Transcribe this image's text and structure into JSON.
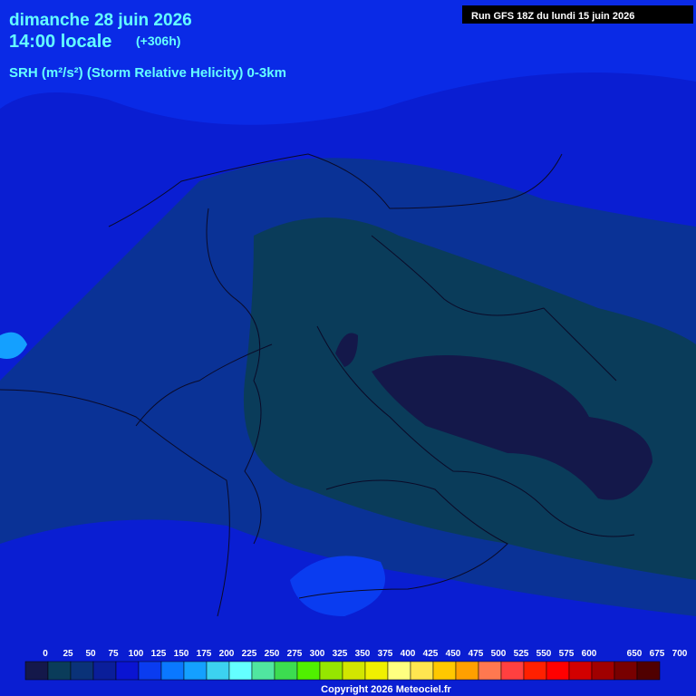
{
  "header": {
    "date": "dimanche 28 juin 2026",
    "time": "14:00 locale",
    "lead": "(+306h)",
    "parameter": "SRH (m²/s²) (Storm Relative Helicity) 0-3km",
    "run": "Run GFS 18Z du lundi 15 juin 2026"
  },
  "legend": {
    "ticks": [
      0,
      25,
      50,
      75,
      100,
      125,
      150,
      175,
      200,
      225,
      250,
      275,
      300,
      325,
      350,
      375,
      400,
      425,
      450,
      475,
      500,
      525,
      550,
      575,
      600,
      650,
      675,
      700
    ],
    "colors": [
      "#14184a",
      "#0a3c5a",
      "#0a3278",
      "#0a1e9a",
      "#0a14d2",
      "#0a3cf0",
      "#0a78ff",
      "#14a0ff",
      "#3cd2f0",
      "#64ffff",
      "#50e6a0",
      "#3cdc50",
      "#50f000",
      "#96e600",
      "#d2e600",
      "#f0f000",
      "#ffff80",
      "#ffe650",
      "#ffc800",
      "#ffa000",
      "#ff7850",
      "#ff4040",
      "#ff2000",
      "#ff0000",
      "#d20000",
      "#a00000",
      "#780000",
      "#500000"
    ]
  },
  "footer": {
    "copyright": "Copyright 2026 Meteociel.fr"
  }
}
